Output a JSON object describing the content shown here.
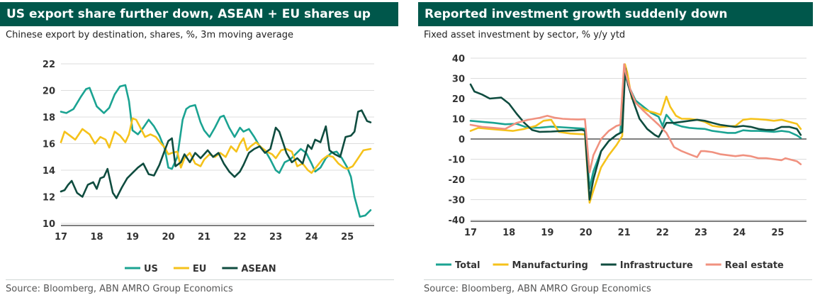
{
  "chart_data": [
    {
      "type": "line",
      "title": "US export share further down, ASEAN + EU shares up",
      "subtitle": "Chinese export by destination, shares, %, 3m moving average",
      "source": "Source: Bloomberg, ABN AMRO Group Economics",
      "xlim": [
        2017,
        2025.75
      ],
      "ylim": [
        10,
        22
      ],
      "yticks": [
        "10",
        "12",
        "14",
        "16",
        "18",
        "20",
        "22"
      ],
      "xticks": [
        "17",
        "18",
        "19",
        "20",
        "21",
        "22",
        "23",
        "24",
        "25"
      ],
      "grid": "horizontal",
      "legend": "bottom",
      "series": [
        {
          "name": "US",
          "color": "#1BA392",
          "x": [
            2017,
            2017.15,
            2017.35,
            2017.55,
            2017.7,
            2017.8,
            2018.0,
            2018.2,
            2018.35,
            2018.5,
            2018.65,
            2018.8,
            2018.9,
            2019.0,
            2019.15,
            2019.3,
            2019.45,
            2019.6,
            2019.75,
            2019.9,
            2020.0,
            2020.1,
            2020.25,
            2020.4,
            2020.5,
            2020.6,
            2020.75,
            2020.9,
            2021.0,
            2021.15,
            2021.3,
            2021.45,
            2021.55,
            2021.7,
            2021.85,
            2022.0,
            2022.1,
            2022.25,
            2022.4,
            2022.55,
            2022.7,
            2022.85,
            2023.0,
            2023.1,
            2023.25,
            2023.4,
            2023.55,
            2023.7,
            2023.85,
            2024.0,
            2024.1,
            2024.25,
            2024.4,
            2024.55,
            2024.7,
            2024.85,
            2025.0,
            2025.1,
            2025.2,
            2025.35,
            2025.5,
            2025.65
          ],
          "y": [
            18.4,
            18.3,
            18.6,
            19.5,
            20.1,
            20.2,
            18.8,
            18.3,
            18.7,
            19.7,
            20.3,
            20.4,
            19.2,
            17.0,
            16.7,
            17.2,
            17.8,
            17.3,
            16.6,
            15.6,
            14.2,
            14.1,
            15.0,
            17.8,
            18.6,
            18.8,
            18.9,
            17.6,
            17.0,
            16.5,
            17.2,
            18.0,
            18.1,
            17.2,
            16.5,
            17.2,
            16.9,
            17.1,
            16.5,
            15.8,
            15.5,
            14.8,
            14.0,
            13.8,
            14.6,
            14.8,
            15.2,
            15.6,
            15.3,
            14.5,
            13.9,
            14.2,
            14.9,
            15.3,
            15.4,
            14.9,
            14.2,
            13.5,
            12.0,
            10.5,
            10.6,
            11.0
          ]
        },
        {
          "name": "EU",
          "color": "#F5C21B",
          "x": [
            2017,
            2017.1,
            2017.25,
            2017.4,
            2017.6,
            2017.8,
            2017.95,
            2018.1,
            2018.25,
            2018.35,
            2018.5,
            2018.65,
            2018.8,
            2018.9,
            2019.0,
            2019.1,
            2019.2,
            2019.35,
            2019.5,
            2019.65,
            2019.8,
            2019.9,
            2020.0,
            2020.1,
            2020.25,
            2020.35,
            2020.45,
            2020.6,
            2020.75,
            2020.9,
            2021.0,
            2021.15,
            2021.3,
            2021.45,
            2021.6,
            2021.75,
            2021.9,
            2022.0,
            2022.1,
            2022.2,
            2022.3,
            2022.45,
            2022.6,
            2022.75,
            2022.9,
            2023.0,
            2023.15,
            2023.3,
            2023.45,
            2023.6,
            2023.75,
            2023.9,
            2024.0,
            2024.15,
            2024.3,
            2024.45,
            2024.6,
            2024.75,
            2024.9,
            2025.0,
            2025.15,
            2025.3,
            2025.45,
            2025.65
          ],
          "y": [
            16.1,
            16.9,
            16.6,
            16.3,
            17.1,
            16.7,
            16.0,
            16.5,
            16.3,
            15.7,
            16.9,
            16.6,
            16.1,
            16.7,
            17.9,
            17.8,
            17.3,
            16.5,
            16.7,
            16.5,
            16.0,
            15.7,
            15.2,
            15.3,
            15.4,
            14.2,
            14.9,
            15.3,
            14.5,
            14.3,
            14.8,
            15.2,
            15.0,
            15.3,
            15.0,
            15.8,
            15.4,
            16.0,
            16.4,
            15.5,
            15.8,
            16.1,
            15.7,
            15.4,
            15.2,
            14.9,
            15.5,
            15.6,
            15.4,
            14.3,
            14.5,
            14.0,
            13.8,
            14.3,
            14.8,
            15.1,
            15.0,
            14.5,
            14.2,
            14.1,
            14.3,
            14.9,
            15.5,
            15.6
          ]
        },
        {
          "name": "ASEAN",
          "color": "#0F4C3F",
          "x": [
            2017,
            2017.1,
            2017.2,
            2017.3,
            2017.45,
            2017.6,
            2017.75,
            2017.9,
            2018.0,
            2018.1,
            2018.2,
            2018.3,
            2018.45,
            2018.55,
            2018.7,
            2018.85,
            2019.0,
            2019.15,
            2019.3,
            2019.45,
            2019.6,
            2019.75,
            2019.9,
            2020.0,
            2020.1,
            2020.2,
            2020.35,
            2020.45,
            2020.6,
            2020.75,
            2020.9,
            2021.0,
            2021.1,
            2021.25,
            2021.4,
            2021.55,
            2021.7,
            2021.85,
            2022.0,
            2022.1,
            2022.25,
            2022.4,
            2022.55,
            2022.7,
            2022.85,
            2023.0,
            2023.1,
            2023.2,
            2023.3,
            2023.45,
            2023.6,
            2023.75,
            2023.9,
            2024.0,
            2024.1,
            2024.25,
            2024.4,
            2024.5,
            2024.65,
            2024.8,
            2024.95,
            2025.1,
            2025.2,
            2025.3,
            2025.4,
            2025.55,
            2025.65
          ],
          "y": [
            12.4,
            12.5,
            12.9,
            13.2,
            12.3,
            12.0,
            12.9,
            13.1,
            12.6,
            13.4,
            13.5,
            14.1,
            12.3,
            11.9,
            12.7,
            13.4,
            13.8,
            14.2,
            14.5,
            13.7,
            13.6,
            14.4,
            15.5,
            16.2,
            16.4,
            14.3,
            14.6,
            15.2,
            14.6,
            15.3,
            14.9,
            15.2,
            15.5,
            15.0,
            15.3,
            14.5,
            13.9,
            13.5,
            13.9,
            14.4,
            15.3,
            15.6,
            15.8,
            15.3,
            15.6,
            17.2,
            16.9,
            16.1,
            15.3,
            14.6,
            14.9,
            14.5,
            15.9,
            15.6,
            16.3,
            16.1,
            17.3,
            15.5,
            15.2,
            15.0,
            16.5,
            16.6,
            16.9,
            18.4,
            18.5,
            17.7,
            17.6
          ]
        }
      ]
    },
    {
      "type": "line",
      "title": "Reported investment growth suddenly down",
      "subtitle": "Fixed asset investment by sector, % y/y ytd",
      "source": "Source: Bloomberg, ABN AMRO Group Economics",
      "xlim": [
        2017,
        2025.75
      ],
      "ylim": [
        -40,
        40
      ],
      "yticks": [
        "-40",
        "-30",
        "-20",
        "-10",
        "0",
        "10",
        "20",
        "30",
        "40"
      ],
      "xticks": [
        "17",
        "18",
        "19",
        "20",
        "21",
        "22",
        "23",
        "24",
        "25"
      ],
      "grid": "horizontal",
      "legend": "bottom",
      "series": [
        {
          "name": "Total",
          "color": "#1BA392",
          "x": [
            2017,
            2017.3,
            2017.6,
            2017.9,
            2018.2,
            2018.5,
            2018.8,
            2019.1,
            2019.4,
            2019.7,
            2019.9,
            2019.98,
            2020.1,
            2020.2,
            2020.4,
            2020.6,
            2020.8,
            2020.9,
            2021.0,
            2021.05,
            2021.15,
            2021.3,
            2021.5,
            2021.7,
            2021.9,
            2022.0,
            2022.1,
            2022.3,
            2022.5,
            2022.7,
            2022.9,
            2023.1,
            2023.3,
            2023.5,
            2023.7,
            2023.9,
            2024.1,
            2024.3,
            2024.5,
            2024.7,
            2024.9,
            2025.1,
            2025.3,
            2025.5,
            2025.6
          ],
          "y": [
            9,
            8.5,
            8,
            7.3,
            7.5,
            5.5,
            5.6,
            6.1,
            5.8,
            5.4,
            5.2,
            5,
            -24.5,
            -16,
            -6,
            -1,
            2,
            3,
            35,
            30,
            25,
            19,
            16,
            13,
            11,
            6.5,
            12,
            7.5,
            6.2,
            5.5,
            5.2,
            5,
            4,
            3.5,
            3,
            3,
            4.3,
            4,
            4,
            3.8,
            3.5,
            4,
            3.5,
            1.8,
            0.5
          ]
        },
        {
          "name": "Manufacturing",
          "color": "#F5C21B",
          "x": [
            2017,
            2017.2,
            2017.5,
            2017.8,
            2018.1,
            2018.4,
            2018.7,
            2018.9,
            2019.1,
            2019.3,
            2019.6,
            2019.8,
            2019.98,
            2020.1,
            2020.2,
            2020.4,
            2020.6,
            2020.8,
            2020.95,
            2021.02,
            2021.08,
            2021.2,
            2021.4,
            2021.6,
            2021.8,
            2021.95,
            2022.1,
            2022.2,
            2022.35,
            2022.5,
            2022.7,
            2022.9,
            2023.1,
            2023.3,
            2023.5,
            2023.7,
            2023.9,
            2024.1,
            2024.3,
            2024.5,
            2024.7,
            2024.9,
            2025.1,
            2025.3,
            2025.5,
            2025.6
          ],
          "y": [
            4,
            5.5,
            5,
            4.5,
            4,
            5,
            6.5,
            9,
            9.5,
            3.5,
            2.7,
            2.5,
            2.3,
            -31.5,
            -25.5,
            -14,
            -8,
            -3,
            1.5,
            37,
            33,
            20,
            16,
            14,
            13,
            12,
            21,
            16,
            11.5,
            10,
            10,
            9.5,
            8.5,
            6.5,
            6,
            6.2,
            6.5,
            9.5,
            10,
            9.8,
            9.5,
            9,
            9.5,
            8.5,
            7.5,
            5
          ]
        },
        {
          "name": "Infrastructure",
          "color": "#0F4C3F",
          "x": [
            2017,
            2017.1,
            2017.3,
            2017.5,
            2017.8,
            2018.0,
            2018.2,
            2018.4,
            2018.6,
            2018.8,
            2019.1,
            2019.4,
            2019.7,
            2019.9,
            2019.98,
            2020.1,
            2020.2,
            2020.4,
            2020.6,
            2020.8,
            2020.95,
            2021.03,
            2021.1,
            2021.25,
            2021.4,
            2021.6,
            2021.8,
            2021.9,
            2022.1,
            2022.3,
            2022.5,
            2022.7,
            2022.9,
            2023.1,
            2023.3,
            2023.5,
            2023.7,
            2023.9,
            2024.1,
            2024.3,
            2024.5,
            2024.7,
            2024.9,
            2025.1,
            2025.3,
            2025.5,
            2025.6
          ],
          "y": [
            27,
            23.5,
            22,
            20,
            20.5,
            17.5,
            12.5,
            8,
            4.5,
            3.5,
            3.7,
            4,
            4.2,
            4.5,
            4,
            -30,
            -20,
            -6,
            -1,
            2,
            3.5,
            35,
            27,
            18,
            10,
            5,
            2,
            1,
            8,
            8,
            8.5,
            9,
            9.5,
            9,
            8,
            7,
            6.5,
            6,
            6.5,
            6,
            5,
            4.5,
            4.5,
            6,
            6,
            5,
            2
          ]
        },
        {
          "name": "Real estate",
          "color": "#F0917F",
          "x": [
            2017,
            2017.3,
            2017.6,
            2017.9,
            2018.2,
            2018.5,
            2018.8,
            2019.0,
            2019.2,
            2019.4,
            2019.6,
            2019.8,
            2019.98,
            2020.1,
            2020.2,
            2020.4,
            2020.6,
            2020.8,
            2020.9,
            2021.0,
            2021.05,
            2021.15,
            2021.3,
            2021.5,
            2021.7,
            2021.9,
            2022.1,
            2022.3,
            2022.5,
            2022.7,
            2022.9,
            2023.0,
            2023.1,
            2023.3,
            2023.5,
            2023.7,
            2023.9,
            2024.1,
            2024.3,
            2024.5,
            2024.7,
            2024.9,
            2025.1,
            2025.2,
            2025.3,
            2025.5,
            2025.6
          ],
          "y": [
            7,
            6,
            5.5,
            5,
            8,
            9.5,
            10.5,
            11.5,
            10.5,
            10,
            9.8,
            9.7,
            9.8,
            -16.5,
            -8,
            0,
            4,
            6.5,
            7,
            37,
            32,
            25,
            18,
            14,
            10.5,
            7,
            3,
            -4,
            -6,
            -7.5,
            -9,
            -6,
            -6,
            -6.5,
            -7.5,
            -8,
            -8.5,
            -8,
            -8.5,
            -9.5,
            -9.5,
            -10,
            -10.5,
            -9.5,
            -10,
            -11,
            -12.5
          ]
        }
      ]
    }
  ]
}
